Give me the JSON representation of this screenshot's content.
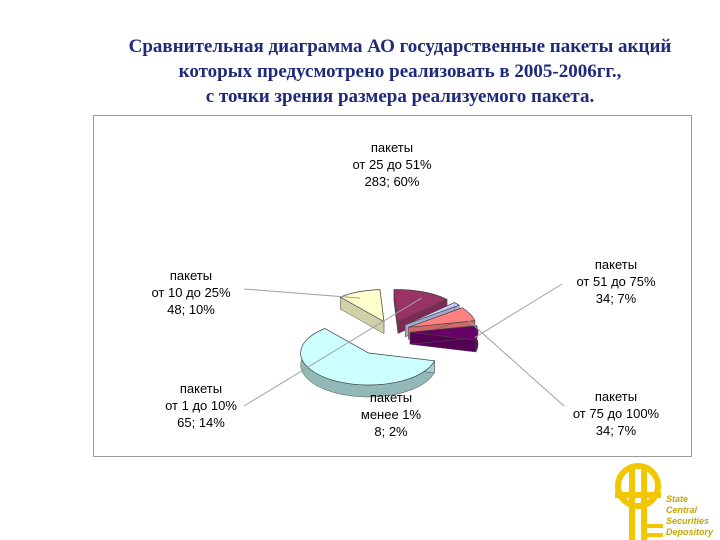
{
  "title": {
    "line1": "Сравнительная диаграмма АО государственные пакеты акций",
    "line2": "которых предусмотрено реализовать в 2005-2006гг.,",
    "line3": "с точки зрения  размера реализуемого пакета."
  },
  "chart_data": {
    "type": "pie",
    "style": "3d-exploded",
    "slices": [
      {
        "label_line1": "пакеты",
        "label_line2": "от 25 до 51%",
        "value_text": "283; 60%",
        "value": 283,
        "percent": 60,
        "color": "#ccffff"
      },
      {
        "label_line1": "пакеты",
        "label_line2": "от 51 до 75%",
        "value_text": "34; 7%",
        "value": 34,
        "percent": 7,
        "color": "#660066"
      },
      {
        "label_line1": "пакеты",
        "label_line2": "от 75 до 100%",
        "value_text": "34; 7%",
        "value": 34,
        "percent": 7,
        "color": "#ff8080"
      },
      {
        "label_line1": "пакеты",
        "label_line2": "менее 1%",
        "value_text": "8; 2%",
        "value": 8,
        "percent": 2,
        "color": "#ccccff"
      },
      {
        "label_line1": "пакеты",
        "label_line2": "от 1 до 10%",
        "value_text": "65; 14%",
        "value": 65,
        "percent": 14,
        "color": "#993366"
      },
      {
        "label_line1": "пакеты",
        "label_line2": "от 10 до 25%",
        "value_text": "48; 10%",
        "value": 48,
        "percent": 10,
        "color": "#ffffcc"
      }
    ]
  },
  "logo": {
    "line1": "State",
    "line2": "Central",
    "line3": "Securities",
    "line4": "Depository",
    "color": "#f2c600"
  }
}
